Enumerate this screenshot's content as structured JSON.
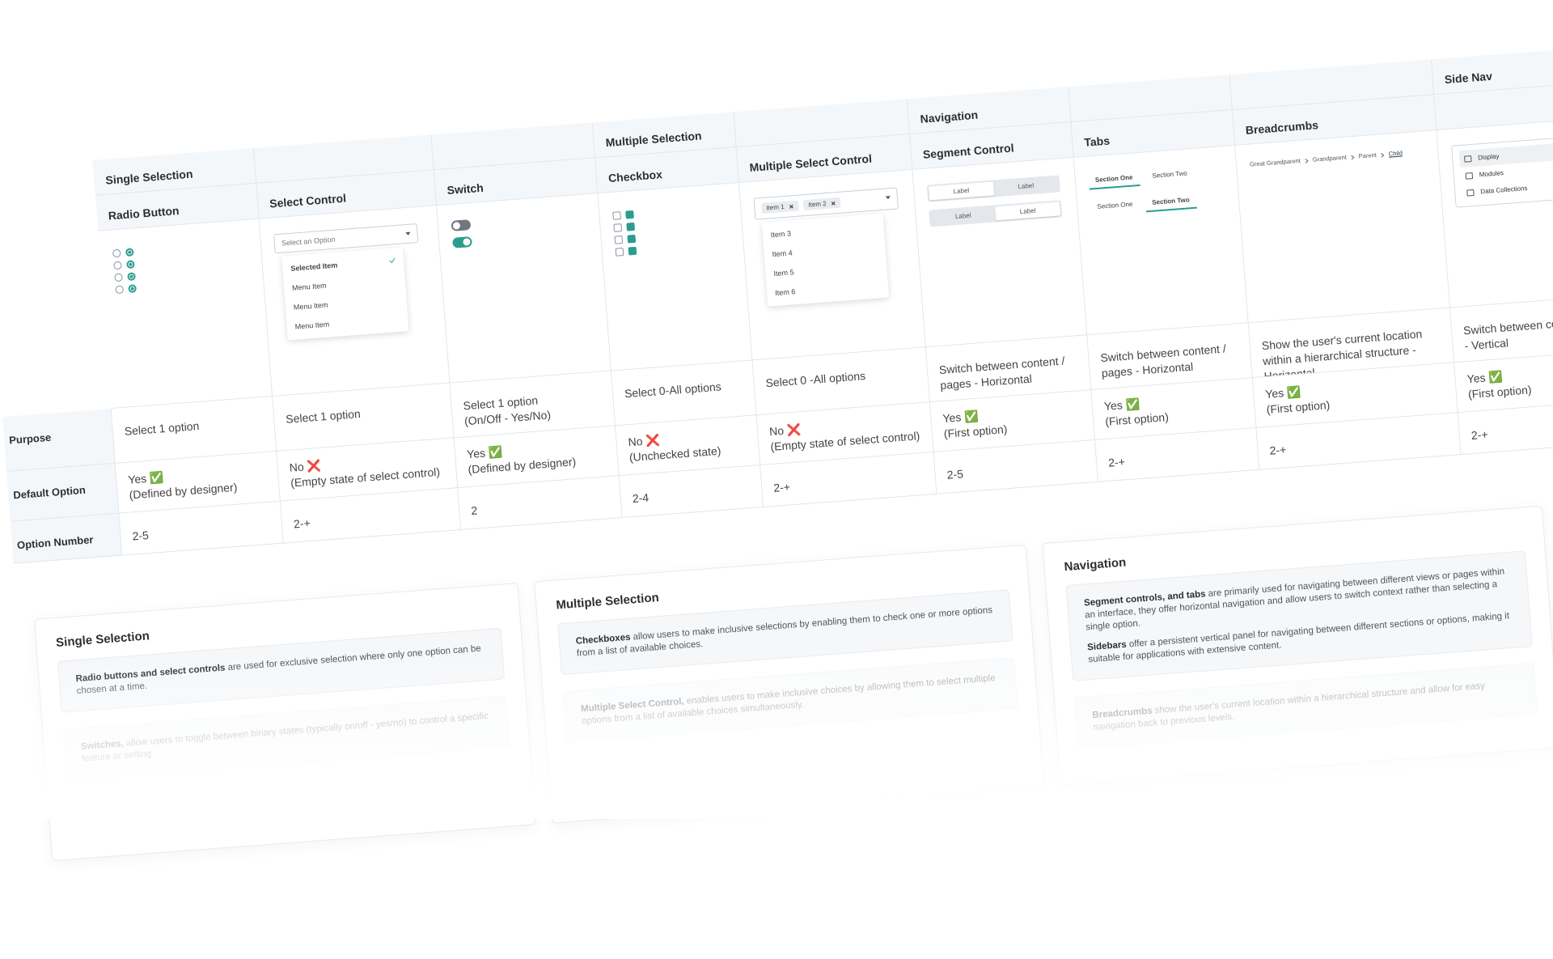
{
  "row_labels": [
    "Purpose",
    "Default Option",
    "Option Number"
  ],
  "columns": [
    {
      "group": "Single Selection",
      "name": "Radio Button",
      "purpose": "Select 1 option",
      "default": "Yes ✅",
      "default_note": "(Defined by designer)",
      "options": "2-5"
    },
    {
      "name": "Select Control",
      "purpose": "Select 1 option",
      "default": "No ❌",
      "default_note": "(Empty state of select control)",
      "options": "2-+"
    },
    {
      "name": "Switch",
      "purpose": "Select 1 option",
      "purpose_note": "(On/Off - Yes/No)",
      "default": "Yes ✅",
      "default_note": "(Defined by designer)",
      "options": "2"
    },
    {
      "group": "Multiple Selection",
      "name": "Checkbox",
      "purpose": "Select 0-All options",
      "default": "No ❌",
      "default_note": "(Unchecked state)",
      "options": "2-4"
    },
    {
      "name": "Multiple Select Control",
      "purpose": "Select 0 -All options",
      "default": "No ❌",
      "default_note": "(Empty state of select control)",
      "options": "2-+"
    },
    {
      "group": "Navigation",
      "name": "Segment Control",
      "purpose": "Switch between content / pages - Horizontal",
      "default": "Yes ✅",
      "default_note": "(First option)",
      "options": "2-5"
    },
    {
      "name": "Tabs",
      "purpose": "Switch between content / pages - Horizontal",
      "default": "Yes ✅",
      "default_note": "(First option)",
      "options": "2-+"
    },
    {
      "name": "Breadcrumbs",
      "purpose": "Show the user's current location within a hierarchical structure  - Horizontal",
      "default": "Yes ✅",
      "default_note": "(First option)",
      "options": "2-+"
    },
    {
      "group": "Side Nav",
      "purpose": "Switch between content / pages - Vertical",
      "default": "Yes ✅",
      "default_note": "(First option)",
      "options": "2-+"
    }
  ],
  "previews": {
    "select": {
      "placeholder": "Select an Option",
      "items": [
        "Selected Item",
        "Menu Item",
        "Menu Item",
        "Menu Item"
      ]
    },
    "multi": {
      "chips": [
        "Item 1",
        "Item 2"
      ],
      "items": [
        "Item 3",
        "Item 4",
        "Item 5",
        "Item 6"
      ]
    },
    "segment": [
      "Label",
      "Label",
      "Label",
      "Label"
    ],
    "tabs": [
      "Section One",
      "Section Two",
      "Section One",
      "Section Two"
    ],
    "breadcrumbs": [
      "Great Grandparent",
      "Grandparent",
      "Parent",
      "Child"
    ],
    "side_nav": [
      "Display",
      "Modules",
      "Data Collections"
    ]
  },
  "cards": [
    {
      "title": "Single Selection",
      "boxes": [
        [
          {
            "bold": "Radio buttons and select controls",
            "text": " are used for exclusive selection where only one option can be chosen at a time."
          }
        ],
        [
          {
            "bold": "Switches,",
            "text": " allow users to toggle between binary states (typically on/off - yes/no) to control a specific feature or setting."
          }
        ]
      ]
    },
    {
      "title": "Multiple  Selection",
      "boxes": [
        [
          {
            "bold": "Checkboxes",
            "text": " allow users to make inclusive selections by enabling them to check one or more options from a list of available choices."
          }
        ],
        [
          {
            "bold": "Multiple Select Control,",
            "text": " enables users to make inclusive choices by allowing them to select multiple options from a list of available choices simultaneously."
          }
        ]
      ]
    },
    {
      "title": "Navigation",
      "boxes": [
        [
          {
            "bold": "Segment controls, and tabs",
            "text": " are primarily used for navigating between different views or pages within an interface, they offer horizontal navigation and allow users to switch context rather than selecting a single option."
          },
          {
            "bold": "Sidebars",
            "text": " offer a persistent vertical panel for navigating between different sections or options, making it suitable for applications with extensive content."
          }
        ],
        [
          {
            "bold": "Breadcrumbs",
            "text": " show the user's current location within a hierarchical structure and allow for easy navigation back to previous levels."
          }
        ]
      ]
    }
  ]
}
